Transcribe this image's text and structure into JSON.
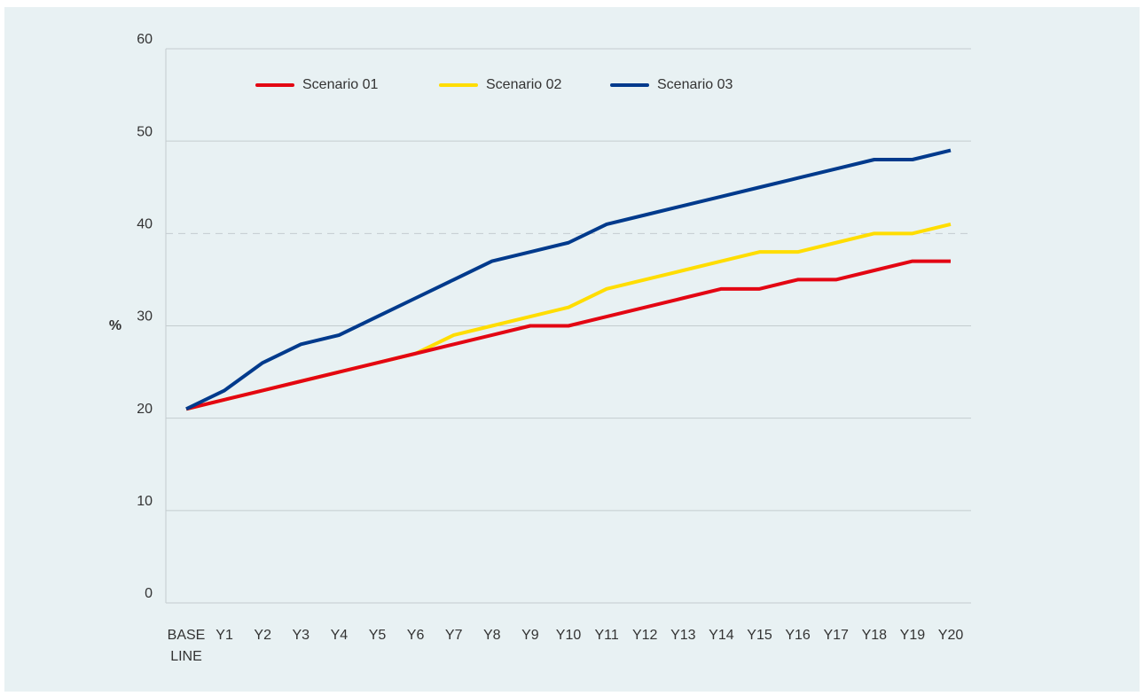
{
  "chart_data": {
    "type": "line",
    "y_label": "%",
    "categories": [
      "BASE LINE",
      "Y1",
      "Y2",
      "Y3",
      "Y4",
      "Y5",
      "Y6",
      "Y7",
      "Y8",
      "Y9",
      "Y10",
      "Y11",
      "Y12",
      "Y13",
      "Y14",
      "Y15",
      "Y16",
      "Y17",
      "Y18",
      "Y19",
      "Y20"
    ],
    "series": [
      {
        "name": "Scenario 01",
        "color": "#e30613",
        "values": [
          21,
          22,
          23,
          24,
          25,
          26,
          27,
          28,
          29,
          30,
          30,
          31,
          32,
          33,
          34,
          34,
          35,
          35,
          36,
          37,
          37
        ]
      },
      {
        "name": "Scenario 02",
        "color": "#ffdd00",
        "values": [
          21,
          22,
          23,
          24,
          25,
          26,
          27,
          29,
          30,
          31,
          32,
          34,
          35,
          36,
          37,
          38,
          38,
          39,
          40,
          40,
          41
        ]
      },
      {
        "name": "Scenario 03",
        "color": "#003a8c",
        "values": [
          21,
          23,
          26,
          28,
          29,
          31,
          33,
          35,
          37,
          38,
          39,
          41,
          42,
          43,
          44,
          45,
          46,
          47,
          48,
          48,
          49
        ]
      }
    ],
    "ylim": [
      0,
      60
    ],
    "yticks": [
      0,
      10,
      20,
      30,
      40,
      50,
      60
    ],
    "grid": true,
    "legend": "top"
  }
}
